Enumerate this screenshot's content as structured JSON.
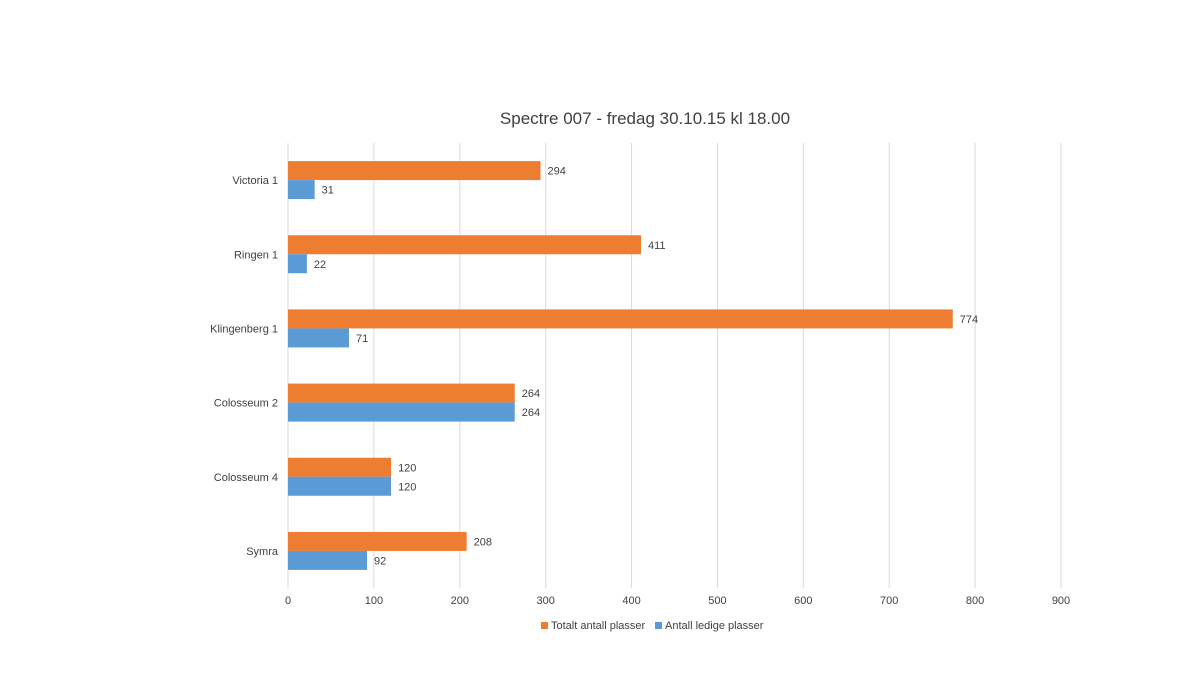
{
  "chart_data": {
    "type": "bar",
    "orientation": "horizontal",
    "title": "Spectre 007 - fredag 30.10.15 kl 18.00",
    "xlabel": "",
    "ylabel": "",
    "categories": [
      "Victoria 1",
      "Ringen 1",
      "Klingenberg 1",
      "Colosseum 2",
      "Colosseum 4",
      "Symra"
    ],
    "series": [
      {
        "name": "Totalt antall plasser",
        "color": "#ed7d31",
        "values": [
          294,
          411,
          774,
          264,
          120,
          208
        ]
      },
      {
        "name": "Antall ledige plasser",
        "color": "#5b9bd5",
        "values": [
          31,
          22,
          71,
          264,
          120,
          92
        ]
      }
    ],
    "xlim": [
      0,
      900
    ],
    "ticks": [
      0,
      100,
      200,
      300,
      400,
      500,
      600,
      700,
      800,
      900
    ],
    "grid": true,
    "legend_position": "bottom",
    "data_labels": true
  }
}
